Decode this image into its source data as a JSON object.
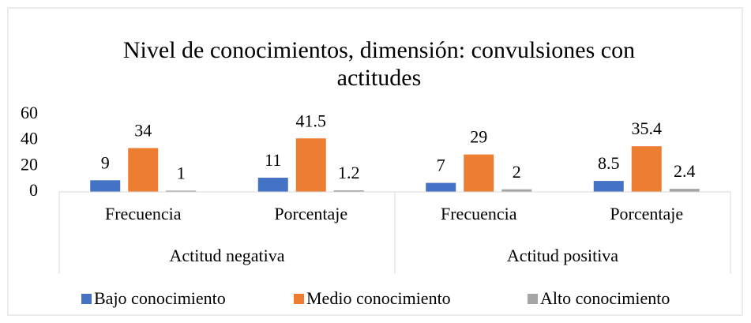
{
  "chart_data": {
    "type": "bar",
    "title": [
      "Nivel de conocimientos, dimensión: convulsiones con",
      "actitudes"
    ],
    "categories": [
      "Frecuencia",
      "Porcentaje",
      "Frecuencia",
      "Porcentaje"
    ],
    "groups": [
      "Actitud negativa",
      "Actitud positiva"
    ],
    "series": [
      {
        "name": "Bajo conocimiento",
        "color": "#4472c4",
        "values": [
          9,
          11,
          7,
          8.5
        ]
      },
      {
        "name": "Medio conocimiento",
        "color": "#ed7d31",
        "values": [
          34,
          41.5,
          29,
          35.4
        ]
      },
      {
        "name": "Alto conocimiento",
        "color": "#a5a5a5",
        "values": [
          1,
          1.2,
          2,
          2.4
        ]
      }
    ],
    "ylim": [
      0,
      60
    ],
    "yticks": [
      0,
      20,
      40,
      60
    ],
    "grid": false,
    "legend": "bottom"
  }
}
